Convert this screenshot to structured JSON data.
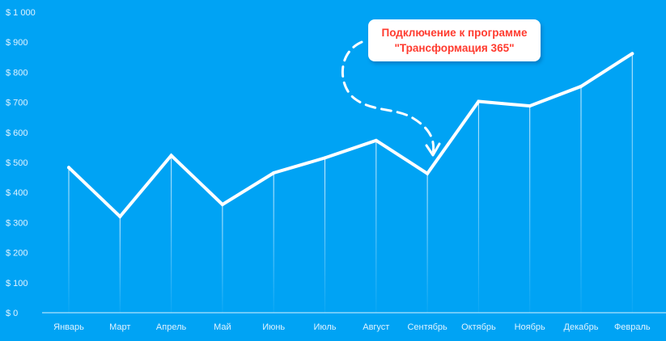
{
  "colors": {
    "background": "#00a3f4",
    "line": "#ffffff",
    "drop_lines": "#ffffff",
    "tick_text": "#dff3ff",
    "annotation_text": "#ff3b2f",
    "annotation_box": "#ffffff"
  },
  "annotation": {
    "line1": "Подключение к программе",
    "line2": "\"Трансформация 365\"",
    "points_to": "Сентябрь"
  },
  "chart_data": {
    "type": "line",
    "title": "",
    "xlabel": "",
    "ylabel": "",
    "categories": [
      "Январь",
      "Март",
      "Апрель",
      "Май",
      "Июнь",
      "Июль",
      "Август",
      "Сентябрь",
      "Октябрь",
      "Ноябрь",
      "Декабрь",
      "Февраль"
    ],
    "values": [
      483,
      320,
      523,
      360,
      465,
      515,
      573,
      463,
      703,
      688,
      753,
      862
    ],
    "ylim": [
      0,
      1000
    ],
    "ytick_labels": [
      "$ 0",
      "$ 100",
      "$ 200",
      "$ 300",
      "$ 400",
      "$ 500",
      "$ 600",
      "$ 700",
      "$ 800",
      "$ 900",
      "$ 1 000"
    ],
    "grid": false,
    "legend": "none"
  }
}
